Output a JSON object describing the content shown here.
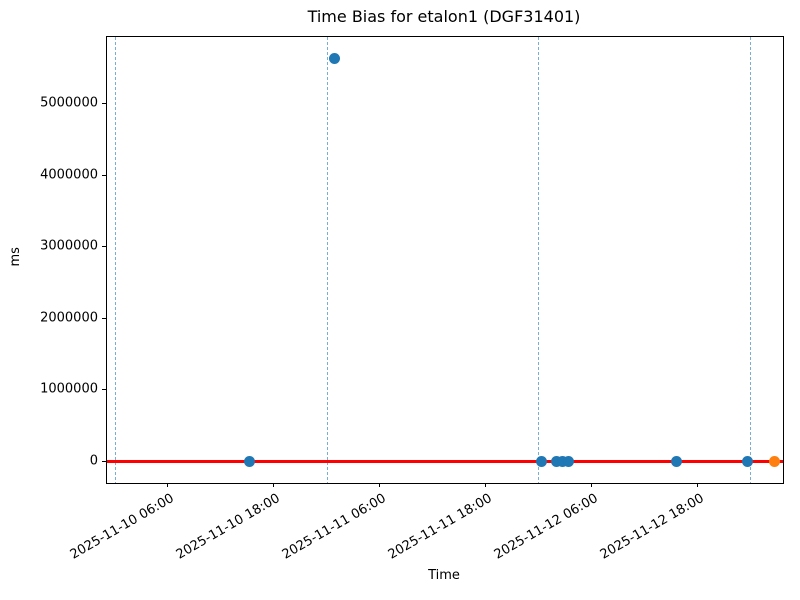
{
  "chart_data": {
    "type": "scatter",
    "title": "Time Bias for etalon1 (DGF31401)",
    "xlabel": "Time",
    "ylabel": "ms",
    "xlim": [
      "2025-11-09T23:03:00",
      "2025-11-13T03:40:00"
    ],
    "ylim": [
      -295000,
      5935000
    ],
    "grid": "vertical-dashed-at-midnights",
    "legend": "none",
    "colors": {
      "series_blue": "#1f77b4",
      "series_orange": "#ff7f0e",
      "zero_line": "#ff0000",
      "gridline": "#77aed2",
      "axis": "#000000"
    },
    "x_gridlines": [
      "2025-11-10T00:00:00",
      "2025-11-11T00:00:00",
      "2025-11-12T00:00:00",
      "2025-11-13T00:00:00"
    ],
    "x_ticks": [
      {
        "x": "2025-11-10T06:00:00",
        "label": "2025-11-10 06:00"
      },
      {
        "x": "2025-11-10T18:00:00",
        "label": "2025-11-10 18:00"
      },
      {
        "x": "2025-11-11T06:00:00",
        "label": "2025-11-11 06:00"
      },
      {
        "x": "2025-11-11T18:00:00",
        "label": "2025-11-11 18:00"
      },
      {
        "x": "2025-11-12T06:00:00",
        "label": "2025-11-12 06:00"
      },
      {
        "x": "2025-11-12T18:00:00",
        "label": "2025-11-12 18:00"
      }
    ],
    "y_ticks": [
      {
        "value": 0,
        "label": "0"
      },
      {
        "value": 1000000,
        "label": "1000000"
      },
      {
        "value": 2000000,
        "label": "2000000"
      },
      {
        "value": 3000000,
        "label": "3000000"
      },
      {
        "value": 4000000,
        "label": "4000000"
      },
      {
        "value": 5000000,
        "label": "5000000"
      }
    ],
    "zero_line_y": 0,
    "series": [
      {
        "name": "bias-points-blue",
        "color": "#1f77b4",
        "points": [
          {
            "x": "2025-11-10T15:15:00",
            "y": 0
          },
          {
            "x": "2025-11-11T00:47:00",
            "y": 5640000
          },
          {
            "x": "2025-11-12T00:20:00",
            "y": 0
          },
          {
            "x": "2025-11-12T01:57:00",
            "y": 0
          },
          {
            "x": "2025-11-12T02:38:00",
            "y": 0
          },
          {
            "x": "2025-11-12T03:19:00",
            "y": 0
          },
          {
            "x": "2025-11-12T15:33:00",
            "y": 0
          },
          {
            "x": "2025-11-12T23:36:00",
            "y": 0
          }
        ]
      },
      {
        "name": "bias-point-orange",
        "color": "#ff7f0e",
        "points": [
          {
            "x": "2025-11-13T02:39:00",
            "y": 0
          }
        ]
      }
    ]
  }
}
